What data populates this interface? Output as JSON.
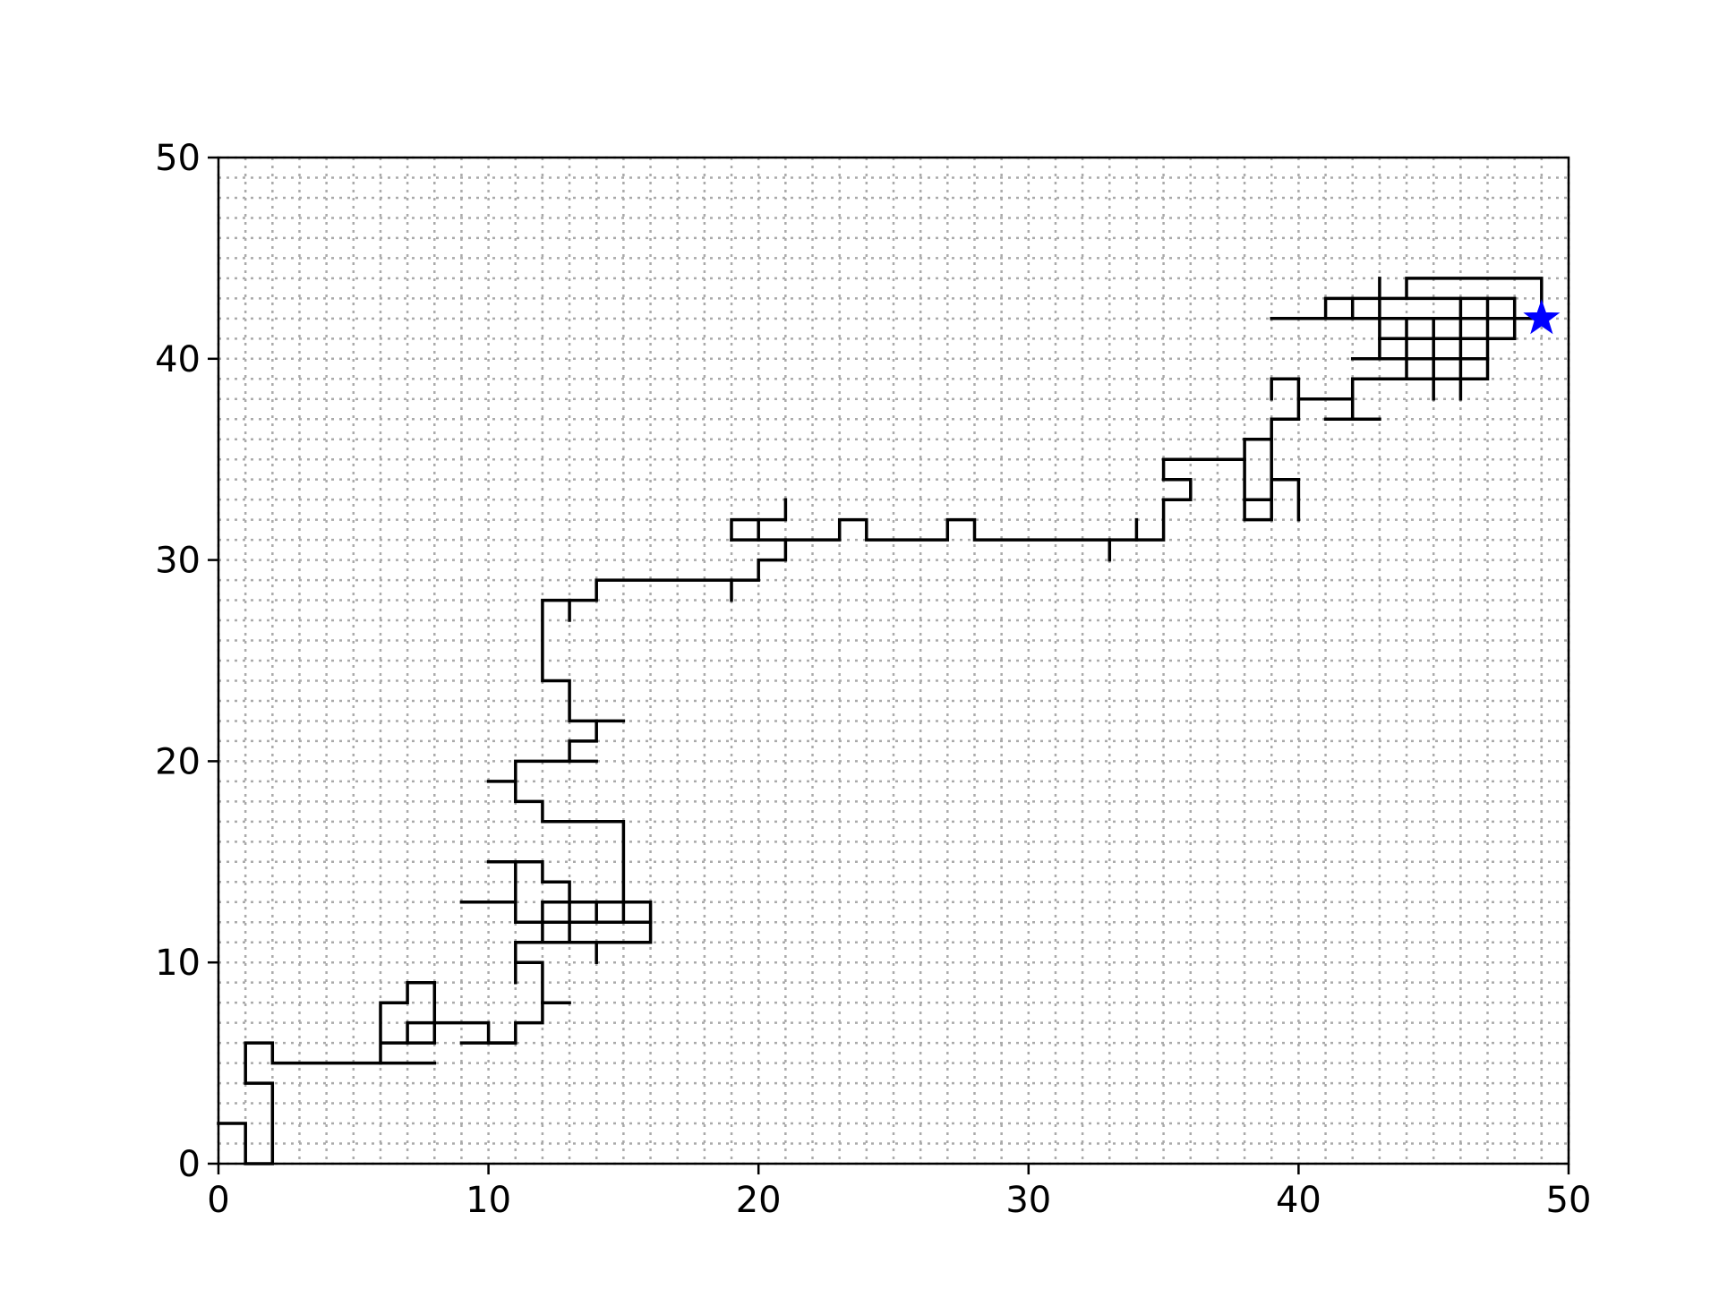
{
  "chart_data": {
    "type": "line",
    "title": "",
    "xlabel": "",
    "ylabel": "",
    "xlim": [
      0,
      50
    ],
    "ylim": [
      0,
      50
    ],
    "x_ticks": [
      0,
      10,
      20,
      30,
      40,
      50
    ],
    "y_ticks": [
      0,
      10,
      20,
      30,
      40,
      50
    ],
    "grid": "dotted every 1 unit",
    "grid_color": "#aaaaaa",
    "path_color": "#000000",
    "marker_color": "#0000ff",
    "segments": [
      [
        [
          0,
          2
        ],
        [
          1,
          2
        ],
        [
          1,
          0
        ],
        [
          2,
          0
        ],
        [
          2,
          4
        ],
        [
          1,
          4
        ],
        [
          1,
          6
        ],
        [
          2,
          6
        ],
        [
          2,
          5
        ],
        [
          8,
          5
        ]
      ],
      [
        [
          6,
          5
        ],
        [
          6,
          8
        ],
        [
          7,
          8
        ],
        [
          7,
          9
        ],
        [
          8,
          9
        ],
        [
          8,
          6
        ],
        [
          6,
          6
        ]
      ],
      [
        [
          7,
          6
        ],
        [
          7,
          7
        ],
        [
          10,
          7
        ],
        [
          10,
          6
        ],
        [
          11,
          6
        ],
        [
          11,
          7
        ],
        [
          12,
          7
        ],
        [
          12,
          10
        ],
        [
          11,
          10
        ],
        [
          11,
          9
        ]
      ],
      [
        [
          9,
          6
        ],
        [
          11,
          6
        ]
      ],
      [
        [
          12,
          8
        ],
        [
          13,
          8
        ]
      ],
      [
        [
          11,
          10
        ],
        [
          11,
          11
        ],
        [
          16,
          11
        ],
        [
          16,
          12
        ],
        [
          12,
          12
        ],
        [
          12,
          11
        ]
      ],
      [
        [
          16,
          12
        ],
        [
          16,
          13
        ],
        [
          12,
          13
        ],
        [
          12,
          12
        ]
      ],
      [
        [
          13,
          11
        ],
        [
          13,
          14
        ],
        [
          12,
          14
        ],
        [
          12,
          15
        ],
        [
          11,
          15
        ],
        [
          11,
          12
        ],
        [
          15,
          12
        ],
        [
          15,
          17
        ],
        [
          12,
          17
        ],
        [
          12,
          18
        ],
        [
          11,
          18
        ],
        [
          11,
          20
        ],
        [
          14,
          20
        ]
      ],
      [
        [
          10,
          15
        ],
        [
          11,
          15
        ]
      ],
      [
        [
          9,
          13
        ],
        [
          11,
          13
        ]
      ],
      [
        [
          14,
          10
        ],
        [
          14,
          11
        ]
      ],
      [
        [
          14,
          12
        ],
        [
          14,
          13
        ]
      ],
      [
        [
          10,
          19
        ],
        [
          11,
          19
        ]
      ],
      [
        [
          13,
          20
        ],
        [
          13,
          21
        ],
        [
          14,
          21
        ],
        [
          14,
          22
        ],
        [
          15,
          22
        ]
      ],
      [
        [
          14,
          22
        ],
        [
          13,
          22
        ],
        [
          13,
          24
        ],
        [
          12,
          24
        ],
        [
          12,
          28
        ],
        [
          14,
          28
        ],
        [
          14,
          29
        ],
        [
          19,
          29
        ],
        [
          20,
          29
        ],
        [
          20,
          30
        ],
        [
          21,
          30
        ],
        [
          21,
          31
        ],
        [
          23,
          31
        ],
        [
          23,
          32
        ],
        [
          24,
          32
        ],
        [
          24,
          31
        ],
        [
          27,
          31
        ],
        [
          27,
          32
        ],
        [
          28,
          32
        ],
        [
          28,
          31
        ],
        [
          35,
          31
        ],
        [
          35,
          33
        ],
        [
          36,
          33
        ],
        [
          36,
          34
        ],
        [
          35,
          34
        ],
        [
          35,
          35
        ],
        [
          38,
          35
        ],
        [
          38,
          32
        ],
        [
          39,
          32
        ],
        [
          39,
          34
        ],
        [
          40,
          34
        ],
        [
          40,
          32
        ]
      ],
      [
        [
          13,
          27
        ],
        [
          13,
          28
        ]
      ],
      [
        [
          19,
          28
        ],
        [
          19,
          29
        ]
      ],
      [
        [
          19,
          31
        ],
        [
          19,
          32
        ],
        [
          21,
          32
        ],
        [
          21,
          33
        ]
      ],
      [
        [
          19,
          31
        ],
        [
          21,
          31
        ]
      ],
      [
        [
          20,
          31
        ],
        [
          20,
          32
        ]
      ],
      [
        [
          33,
          30
        ],
        [
          33,
          31
        ]
      ],
      [
        [
          34,
          31
        ],
        [
          34,
          32
        ]
      ],
      [
        [
          38,
          36
        ],
        [
          39,
          36
        ],
        [
          39,
          37
        ],
        [
          40,
          37
        ],
        [
          40,
          38
        ],
        [
          42,
          38
        ],
        [
          42,
          37
        ]
      ],
      [
        [
          38,
          36
        ],
        [
          38,
          35
        ]
      ],
      [
        [
          39,
          33
        ],
        [
          38,
          33
        ]
      ],
      [
        [
          39,
          36
        ],
        [
          39,
          33
        ]
      ],
      [
        [
          41,
          37
        ],
        [
          43,
          37
        ]
      ],
      [
        [
          39,
          38
        ],
        [
          39,
          39
        ],
        [
          40,
          39
        ],
        [
          40,
          38
        ]
      ],
      [
        [
          42,
          38
        ],
        [
          42,
          39
        ],
        [
          47,
          39
        ],
        [
          47,
          42
        ],
        [
          44,
          42
        ],
        [
          44,
          39
        ]
      ],
      [
        [
          39,
          42
        ],
        [
          49,
          42
        ]
      ],
      [
        [
          41,
          42
        ],
        [
          41,
          43
        ],
        [
          48,
          43
        ],
        [
          48,
          41
        ],
        [
          43,
          41
        ],
        [
          43,
          44
        ]
      ],
      [
        [
          44,
          43
        ],
        [
          44,
          44
        ],
        [
          49,
          44
        ],
        [
          49,
          42
        ]
      ],
      [
        [
          42,
          40
        ],
        [
          47,
          40
        ]
      ],
      [
        [
          42,
          42
        ],
        [
          42,
          43
        ]
      ],
      [
        [
          43,
          40
        ],
        [
          43,
          41
        ]
      ],
      [
        [
          45,
          38
        ],
        [
          45,
          42
        ]
      ],
      [
        [
          46,
          38
        ],
        [
          46,
          43
        ]
      ],
      [
        [
          47,
          42
        ],
        [
          47,
          43
        ]
      ]
    ],
    "marker": {
      "type": "star",
      "x": 49,
      "y": 42
    }
  }
}
